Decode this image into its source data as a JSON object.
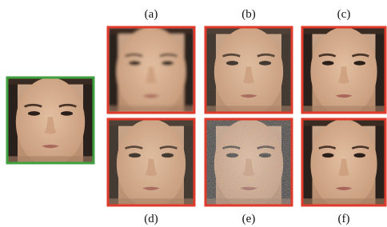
{
  "panels": {
    "top_labels": [
      "(a)",
      "(b)",
      "(c)"
    ],
    "bottom_labels": [
      "(d)",
      "(e)",
      "(f)"
    ]
  }
}
